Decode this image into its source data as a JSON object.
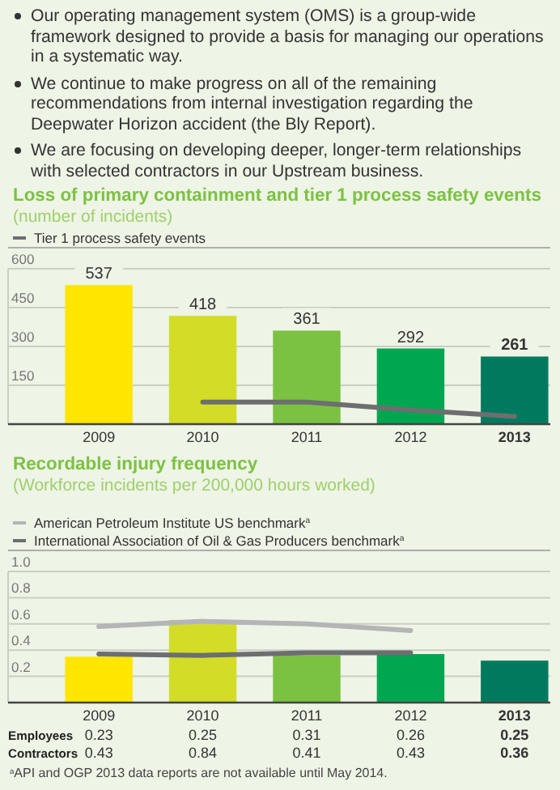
{
  "chart_data": [
    {
      "type": "other",
      "annotations": [
        "Our operating management system (OMS) is a group-wide framework designed to provide a basis for managing our operations in a systematic way.",
        "We continue to make progress on all of the remaining recommendations from internal investigation regarding the Deepwater Horizon accident (the Bly Report).",
        "We are focusing on developing deeper, longer-term relationships with selected contractors in our Upstream business."
      ]
    },
    {
      "type": "bar",
      "title": "Loss of primary containment and tier 1 process safety events",
      "subtitle": "(number of incidents)",
      "categories": [
        "2009",
        "2010",
        "2011",
        "2012",
        "2013"
      ],
      "series": [
        {
          "type": "bar",
          "values": [
            537,
            418,
            361,
            292,
            261
          ],
          "value_labels": [
            "537",
            "418",
            "361",
            "292",
            "261"
          ],
          "colors": [
            "#ffe600",
            "#d3dd28",
            "#7cc242",
            "#00a650",
            "#007a5e"
          ]
        },
        {
          "type": "line",
          "name": "Tier 1 process safety events",
          "color": "#6d6e70",
          "values": [
            null,
            85,
            85,
            55,
            30
          ]
        }
      ],
      "ylim": [
        0,
        600
      ],
      "yticks": [
        150,
        300,
        450,
        600
      ],
      "grid": "y",
      "legend": "top left"
    },
    {
      "type": "bar",
      "title": "Recordable injury frequency",
      "subtitle": "(Workforce incidents per 200,000 hours worked)",
      "categories": [
        "2009",
        "2010",
        "2011",
        "2012",
        "2013"
      ],
      "series": [
        {
          "type": "bar",
          "values": [
            0.35,
            0.63,
            0.36,
            0.37,
            0.32
          ],
          "colors": [
            "#ffe600",
            "#d3dd28",
            "#7cc242",
            "#00a650",
            "#007a5e"
          ]
        },
        {
          "type": "line",
          "name": "American Petroleum Institute US benchmark$^{a}$",
          "color": "#b3b5b6",
          "values": [
            0.58,
            0.62,
            0.6,
            0.55,
            null
          ]
        },
        {
          "type": "line",
          "name": "International Association of Oil & Gas Producers benchmark$^{a}$",
          "color": "#6d6e70",
          "values": [
            0.37,
            0.36,
            0.38,
            0.38,
            null
          ]
        }
      ],
      "ylim": [
        0,
        1
      ],
      "yticks": [
        0.2,
        0.4,
        0.6,
        0.8,
        {
          "value": 1,
          "label": "1.0"
        }
      ],
      "grid": "y",
      "legend": "top left",
      "annotations": [
        "$^{a}$API and OGP 2013 data reports are not available until May 2014."
      ]
    },
    {
      "type": "other",
      "annotations": [
        "Employees 0.23 0.25 0.31 0.26 0.25",
        "Contractors 0.43 0.84 0.41 0.43 0.36"
      ]
    }
  ]
}
